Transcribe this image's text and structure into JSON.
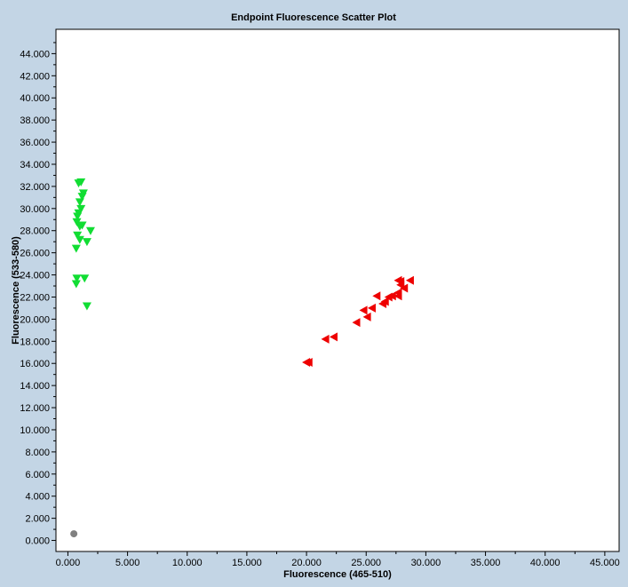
{
  "chart_data": {
    "type": "scatter",
    "title": "Endpoint Fluorescence Scatter Plot",
    "xlabel": "Fluorescence (465-510)",
    "ylabel": "Fluorescence (533-580)",
    "xlim": [
      -1.0,
      46.2
    ],
    "ylim": [
      -1.0,
      46.2
    ],
    "xticks": [
      "0.000",
      "5.000",
      "10.000",
      "15.000",
      "20.000",
      "25.000",
      "30.000",
      "35.000",
      "40.000",
      "45.000"
    ],
    "yticks": [
      "0.000",
      "2.000",
      "4.000",
      "6.000",
      "8.000",
      "10.000",
      "12.000",
      "14.000",
      "16.000",
      "18.000",
      "20.000",
      "22.000",
      "24.000",
      "26.000",
      "28.000",
      "30.000",
      "32.000",
      "34.000",
      "36.000",
      "38.000",
      "40.000",
      "42.000",
      "44.000"
    ],
    "grid": false,
    "series": [
      {
        "name": "green",
        "marker": "triangle-down",
        "color": "#11dd33",
        "points": [
          [
            1.1,
            32.4
          ],
          [
            0.9,
            32.3
          ],
          [
            1.3,
            31.4
          ],
          [
            1.2,
            31.1
          ],
          [
            1.0,
            30.6
          ],
          [
            1.1,
            30.0
          ],
          [
            0.9,
            29.6
          ],
          [
            0.8,
            29.3
          ],
          [
            0.75,
            28.8
          ],
          [
            1.0,
            28.4
          ],
          [
            1.2,
            28.5
          ],
          [
            1.9,
            28.0
          ],
          [
            0.8,
            27.6
          ],
          [
            1.0,
            27.2
          ],
          [
            1.6,
            27.0
          ],
          [
            0.7,
            26.4
          ],
          [
            0.75,
            23.7
          ],
          [
            0.7,
            23.2
          ],
          [
            1.4,
            23.7
          ],
          [
            1.6,
            21.2
          ]
        ]
      },
      {
        "name": "red",
        "marker": "triangle-left",
        "color": "#ee0000",
        "points": [
          [
            20.0,
            16.1
          ],
          [
            20.2,
            16.1
          ],
          [
            21.6,
            18.2
          ],
          [
            22.3,
            18.4
          ],
          [
            24.2,
            19.7
          ],
          [
            25.1,
            20.2
          ],
          [
            24.8,
            20.8
          ],
          [
            25.5,
            21.0
          ],
          [
            25.9,
            22.1
          ],
          [
            26.4,
            21.4
          ],
          [
            26.6,
            21.6
          ],
          [
            26.9,
            22.0
          ],
          [
            27.2,
            22.1
          ],
          [
            27.7,
            22.1
          ],
          [
            27.7,
            22.4
          ],
          [
            27.9,
            23.1
          ],
          [
            27.7,
            23.5
          ],
          [
            27.9,
            23.4
          ],
          [
            28.2,
            22.8
          ],
          [
            28.7,
            23.5
          ]
        ]
      },
      {
        "name": "gray",
        "marker": "circle",
        "color": "#808080",
        "points": [
          [
            0.5,
            0.6
          ]
        ]
      }
    ]
  }
}
